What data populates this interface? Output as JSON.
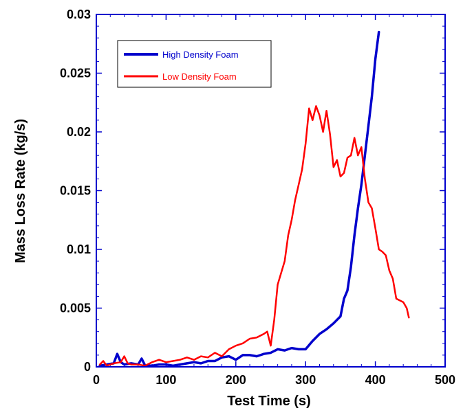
{
  "chart_data": {
    "type": "line",
    "title": "",
    "xlabel": "Test Time (s)",
    "ylabel": "Mass Loss Rate (kg/s)",
    "xlim": [
      0,
      500
    ],
    "ylim": [
      0,
      0.03
    ],
    "x_ticks": [
      0,
      100,
      200,
      300,
      400,
      500
    ],
    "y_ticks": [
      0,
      0.005,
      0.01,
      0.015,
      0.02,
      0.025,
      0.03
    ],
    "x_tick_labels": [
      "0",
      "100",
      "200",
      "300",
      "400",
      "500"
    ],
    "y_tick_labels": [
      "0",
      "0.005",
      "0.01",
      "0.015",
      "0.02",
      "0.025",
      "0.03"
    ],
    "grid": false,
    "legend_position": "top-left",
    "series": [
      {
        "name": "High Density Foam",
        "color": "#0000cc",
        "x": [
          5,
          15,
          25,
          30,
          35,
          40,
          50,
          60,
          65,
          70,
          80,
          90,
          100,
          110,
          120,
          130,
          140,
          150,
          160,
          170,
          180,
          190,
          200,
          210,
          220,
          230,
          240,
          250,
          260,
          270,
          280,
          290,
          300,
          310,
          320,
          330,
          340,
          350,
          355,
          360,
          365,
          370,
          375,
          380,
          385,
          390,
          395,
          400,
          405
        ],
        "y": [
          0.0001,
          0.0002,
          0.0003,
          0.0011,
          0.0004,
          0.0002,
          0.0003,
          0.0002,
          0.0007,
          0.0001,
          0.0001,
          0.0002,
          0.0002,
          0.0001,
          0.0002,
          0.0003,
          0.0004,
          0.0003,
          0.0005,
          0.0005,
          0.0008,
          0.0009,
          0.0006,
          0.001,
          0.001,
          0.0009,
          0.0011,
          0.0012,
          0.0015,
          0.0014,
          0.0016,
          0.0015,
          0.0015,
          0.0022,
          0.0028,
          0.0032,
          0.0037,
          0.0043,
          0.0058,
          0.0065,
          0.0085,
          0.0112,
          0.0135,
          0.0155,
          0.018,
          0.0205,
          0.023,
          0.0262,
          0.0285
        ]
      },
      {
        "name": "Low Density Foam",
        "color": "#ff0000",
        "x": [
          5,
          10,
          15,
          20,
          25,
          35,
          40,
          45,
          50,
          60,
          70,
          80,
          90,
          100,
          110,
          120,
          130,
          140,
          150,
          160,
          170,
          180,
          190,
          200,
          210,
          220,
          230,
          240,
          245,
          250,
          255,
          260,
          265,
          270,
          275,
          280,
          285,
          290,
          295,
          300,
          305,
          310,
          315,
          320,
          325,
          330,
          335,
          340,
          345,
          350,
          355,
          360,
          365,
          370,
          375,
          380,
          385,
          390,
          395,
          400,
          405,
          410,
          415,
          420,
          425,
          430,
          440,
          445,
          448
        ],
        "y": [
          0.0002,
          0.0005,
          0.0001,
          0.0002,
          0.0003,
          0.0004,
          0.0009,
          0.0003,
          0.0002,
          0.0002,
          0.0001,
          0.0004,
          0.0006,
          0.0004,
          0.0005,
          0.0006,
          0.0008,
          0.0006,
          0.0009,
          0.0008,
          0.0012,
          0.0009,
          0.0015,
          0.0018,
          0.002,
          0.0024,
          0.0025,
          0.0028,
          0.003,
          0.0018,
          0.004,
          0.007,
          0.008,
          0.009,
          0.0112,
          0.0125,
          0.0142,
          0.0155,
          0.0168,
          0.019,
          0.022,
          0.021,
          0.0222,
          0.0214,
          0.02,
          0.0218,
          0.0198,
          0.017,
          0.0176,
          0.0162,
          0.0165,
          0.0178,
          0.018,
          0.0195,
          0.018,
          0.0187,
          0.016,
          0.014,
          0.0135,
          0.0118,
          0.01,
          0.0098,
          0.0095,
          0.0082,
          0.0075,
          0.0058,
          0.0055,
          0.005,
          0.0042
        ]
      }
    ]
  }
}
